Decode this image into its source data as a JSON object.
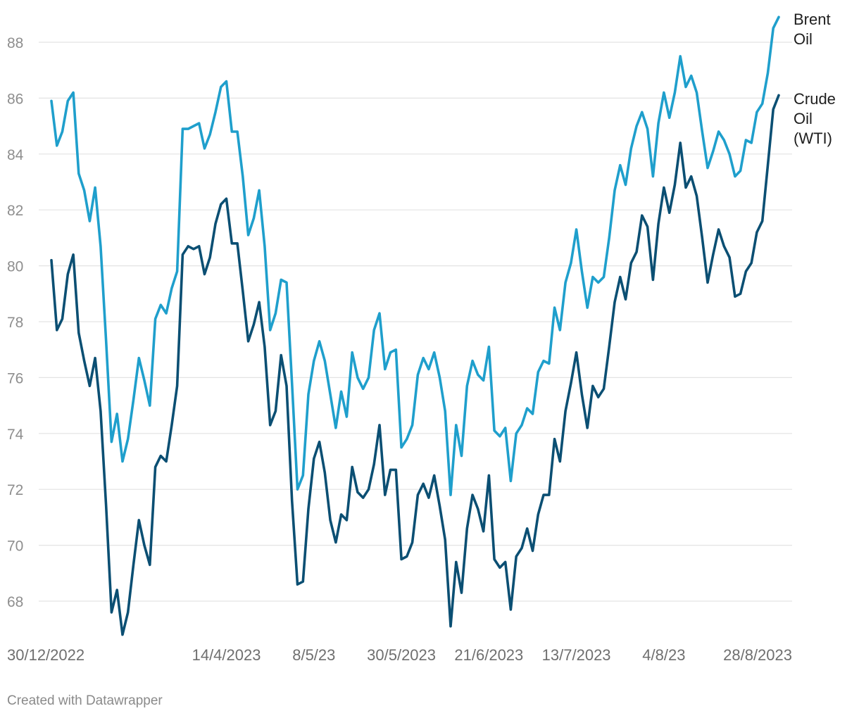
{
  "footer": {
    "credit": "Created with Datawrapper"
  },
  "chart_data": {
    "type": "line",
    "title": "",
    "xlabel": "",
    "ylabel": "",
    "ylim": [
      67,
      89
    ],
    "y_ticks": [
      68,
      70,
      72,
      74,
      76,
      78,
      80,
      82,
      84,
      86,
      88
    ],
    "grid": true,
    "legend": "direct labels at right end of lines",
    "x_tick_labels": [
      {
        "index": 0,
        "label": "30/12/2022"
      },
      {
        "index": 32,
        "label": "14/4/2023"
      },
      {
        "index": 48,
        "label": "8/5/23"
      },
      {
        "index": 64,
        "label": "30/5/2023"
      },
      {
        "index": 80,
        "label": "21/6/2023"
      },
      {
        "index": 96,
        "label": "13/7/2023"
      },
      {
        "index": 112,
        "label": "4/8/23"
      },
      {
        "index": 128,
        "label": "28/8/2023"
      }
    ],
    "series": [
      {
        "name": "Brent Oil",
        "label_lines": [
          "Brent",
          "Oil"
        ],
        "color": "#1f9fcc",
        "values": [
          85.9,
          84.3,
          84.8,
          85.9,
          86.2,
          83.3,
          82.7,
          81.6,
          82.8,
          80.7,
          77.3,
          73.7,
          74.7,
          73.0,
          73.8,
          75.2,
          76.7,
          75.9,
          75.0,
          78.1,
          78.6,
          78.3,
          79.2,
          79.8,
          84.9,
          84.9,
          85.0,
          85.1,
          84.2,
          84.7,
          85.5,
          86.4,
          86.6,
          84.8,
          84.8,
          83.2,
          81.1,
          81.7,
          82.7,
          80.7,
          77.7,
          78.3,
          79.5,
          79.4,
          75.8,
          72.0,
          72.5,
          75.4,
          76.6,
          77.3,
          76.6,
          75.4,
          74.2,
          75.5,
          74.6,
          76.9,
          76.0,
          75.6,
          76.0,
          77.7,
          78.3,
          76.3,
          76.9,
          77.0,
          73.5,
          73.8,
          74.3,
          76.1,
          76.7,
          76.3,
          76.9,
          76.0,
          74.8,
          71.8,
          74.3,
          73.2,
          75.7,
          76.6,
          76.1,
          75.9,
          77.1,
          74.1,
          73.9,
          74.2,
          72.3,
          74.0,
          74.3,
          74.9,
          74.7,
          76.2,
          76.6,
          76.5,
          78.5,
          77.7,
          79.4,
          80.1,
          81.3,
          79.8,
          78.5,
          79.6,
          79.4,
          79.6,
          81.0,
          82.7,
          83.6,
          82.9,
          84.2,
          85.0,
          85.5,
          84.9,
          83.2,
          85.1,
          86.2,
          85.3,
          86.2,
          87.5,
          86.4,
          86.8,
          86.2,
          84.8,
          83.5,
          84.1,
          84.8,
          84.5,
          84.0,
          83.2,
          83.4,
          84.5,
          84.4,
          85.5,
          85.8,
          86.9,
          88.5,
          88.9
        ]
      },
      {
        "name": "Crude Oil (WTI)",
        "label_lines": [
          "Crude",
          "Oil",
          "(WTI)"
        ],
        "color": "#0b4f73",
        "values": [
          80.2,
          77.7,
          78.1,
          79.7,
          80.4,
          77.6,
          76.6,
          75.7,
          76.7,
          74.8,
          71.4,
          67.6,
          68.4,
          66.8,
          67.6,
          69.3,
          70.9,
          70.0,
          69.3,
          72.8,
          73.2,
          73.0,
          74.3,
          75.7,
          80.4,
          80.7,
          80.6,
          80.7,
          79.7,
          80.3,
          81.5,
          82.2,
          82.4,
          80.8,
          80.8,
          79.1,
          77.3,
          77.9,
          78.7,
          77.1,
          74.3,
          74.8,
          76.8,
          75.7,
          71.6,
          68.6,
          68.7,
          71.3,
          73.1,
          73.7,
          72.6,
          70.9,
          70.1,
          71.1,
          70.9,
          72.8,
          71.9,
          71.7,
          72.0,
          72.9,
          74.3,
          71.8,
          72.7,
          72.7,
          69.5,
          69.6,
          70.1,
          71.8,
          72.2,
          71.7,
          72.5,
          71.4,
          70.2,
          67.1,
          69.4,
          68.3,
          70.6,
          71.8,
          71.3,
          70.5,
          72.5,
          69.5,
          69.2,
          69.4,
          67.7,
          69.6,
          69.9,
          70.6,
          69.8,
          71.1,
          71.8,
          71.8,
          73.8,
          73.0,
          74.8,
          75.8,
          76.9,
          75.4,
          74.2,
          75.7,
          75.3,
          75.6,
          77.1,
          78.7,
          79.6,
          78.8,
          80.1,
          80.5,
          81.8,
          81.4,
          79.5,
          81.5,
          82.8,
          81.9,
          82.9,
          84.4,
          82.8,
          83.2,
          82.5,
          81.0,
          79.4,
          80.4,
          81.3,
          80.7,
          80.3,
          78.9,
          79.0,
          79.8,
          80.1,
          81.2,
          81.6,
          83.6,
          85.6,
          86.1
        ]
      }
    ]
  }
}
